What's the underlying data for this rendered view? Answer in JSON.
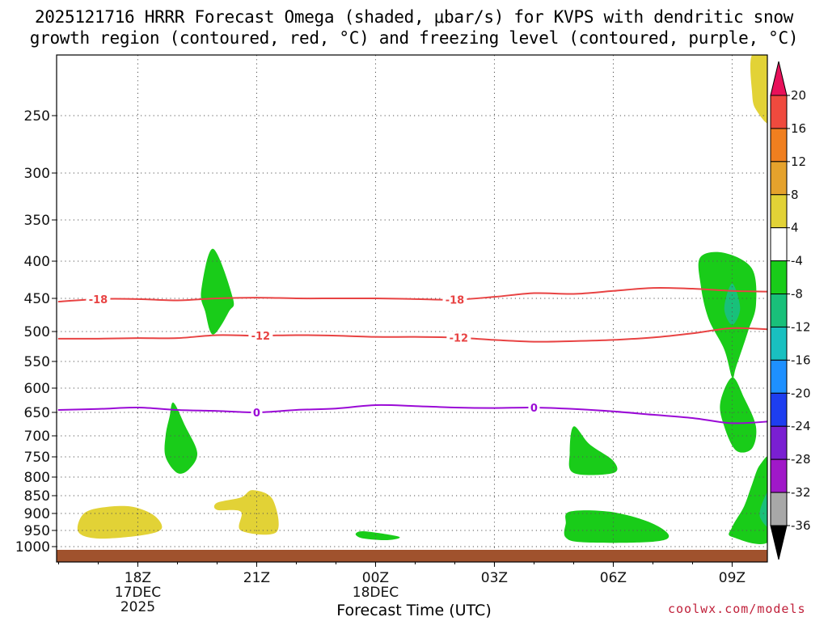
{
  "title": {
    "line1": "2025121716 HRRR Forecast Omega (shaded, μbar/s) for KVPS with dendritic snow",
    "line2": "growth region (contoured, red, °C) and freezing level (contoured, purple, °C)"
  },
  "xlabel": "Forecast Time (UTC)",
  "credit": "coolwx.com/models",
  "chart_data": {
    "type": "heatmap",
    "title": "2025121716 HRRR Forecast Omega (shaded, μbar/s) for KVPS with dendritic snow growth region (contoured, red, °C) and freezing level (contoured, purple, °C)",
    "xlabel": "Forecast Time (UTC)",
    "ylabel": "",
    "x_range_hours_after_16Z": [
      0,
      18
    ],
    "x_ticks": [
      {
        "hour": 2,
        "label": "18Z",
        "sub1": "17DEC",
        "sub2": "2025"
      },
      {
        "hour": 5,
        "label": "21Z",
        "sub1": "",
        "sub2": ""
      },
      {
        "hour": 8,
        "label": "00Z",
        "sub1": "18DEC",
        "sub2": ""
      },
      {
        "hour": 11,
        "label": "03Z",
        "sub1": "",
        "sub2": ""
      },
      {
        "hour": 14,
        "label": "06Z",
        "sub1": "",
        "sub2": ""
      },
      {
        "hour": 17,
        "label": "09Z",
        "sub1": "",
        "sub2": ""
      }
    ],
    "y_ticks_hPa": [
      250,
      300,
      350,
      400,
      450,
      500,
      550,
      600,
      650,
      700,
      750,
      800,
      850,
      900,
      950,
      1000
    ],
    "y_range_hPa": [
      200,
      1020
    ],
    "grid": true,
    "surface_hPa": 1010,
    "colorbar": {
      "ticks": [
        20,
        16,
        12,
        8,
        4,
        -4,
        -8,
        -12,
        -16,
        -20,
        -24,
        -28,
        -32,
        -36
      ],
      "colors": [
        "#e8115a",
        "#ef4a3e",
        "#f07f1f",
        "#e5a22c",
        "#e2d236",
        "#ffffff",
        "#19cc19",
        "#19c07a",
        "#19c0c0",
        "#1e90ff",
        "#1e3ef0",
        "#7a1fd2",
        "#a018c8",
        "#a8a8a8",
        "#000000"
      ]
    },
    "contours": [
      {
        "label": "-18",
        "color": "#e84343",
        "x": [
          0,
          1,
          2,
          3,
          4,
          5,
          6,
          7,
          8,
          9,
          10,
          11,
          12,
          13,
          14,
          15,
          16,
          17,
          18
        ],
        "p": [
          455,
          451,
          451,
          453,
          450,
          449,
          450,
          450,
          450,
          451,
          452,
          448,
          443,
          444,
          440,
          436,
          437,
          440,
          441
        ]
      },
      {
        "label": "-12",
        "color": "#e84343",
        "x": [
          0,
          1,
          2,
          3,
          4,
          5,
          6,
          7,
          8,
          9,
          10,
          11,
          12,
          13,
          14,
          15,
          16,
          17,
          18
        ],
        "p": [
          512,
          512,
          511,
          511,
          506,
          507,
          506,
          507,
          509,
          509,
          510,
          514,
          517,
          516,
          514,
          510,
          503,
          495,
          497
        ]
      },
      {
        "label": "0",
        "color": "#9a0ad6",
        "x": [
          0,
          1,
          2,
          3,
          4,
          5,
          6,
          7,
          8,
          9,
          10,
          11,
          12,
          13,
          14,
          15,
          16,
          17,
          18
        ],
        "p": [
          645,
          643,
          640,
          645,
          647,
          650,
          645,
          642,
          635,
          637,
          640,
          641,
          640,
          643,
          648,
          655,
          662,
          673,
          669
        ]
      }
    ],
    "shaded_regions": [
      {
        "value_class": "-4 to -8",
        "color": "#19cc19",
        "pts": [
          [
            3.9,
            385
          ],
          [
            4.4,
            450
          ],
          [
            4.3,
            470
          ],
          [
            3.9,
            505
          ],
          [
            3.7,
            470
          ],
          [
            3.6,
            440
          ]
        ]
      },
      {
        "value_class": "-4 to -8",
        "color": "#19cc19",
        "pts": [
          [
            2.9,
            630
          ],
          [
            3.2,
            680
          ],
          [
            3.5,
            740
          ],
          [
            3.3,
            780
          ],
          [
            3.0,
            790
          ],
          [
            2.7,
            750
          ],
          [
            2.7,
            700
          ],
          [
            2.8,
            660
          ]
        ]
      },
      {
        "value_class": "-4 to -8",
        "color": "#19cc19",
        "pts": [
          [
            16.2,
            395
          ],
          [
            16.8,
            390
          ],
          [
            17.5,
            410
          ],
          [
            17.6,
            460
          ],
          [
            17.4,
            500
          ],
          [
            17.1,
            560
          ],
          [
            17.0,
            580
          ],
          [
            16.8,
            530
          ],
          [
            16.4,
            480
          ],
          [
            16.2,
            430
          ]
        ]
      },
      {
        "value_class": "-8 to -12",
        "color": "#19c07a",
        "pts": [
          [
            17.0,
            430
          ],
          [
            17.2,
            465
          ],
          [
            17.0,
            490
          ],
          [
            16.8,
            465
          ]
        ]
      },
      {
        "value_class": "-4 to -8",
        "color": "#19cc19",
        "pts": [
          [
            17.0,
            580
          ],
          [
            17.3,
            620
          ],
          [
            17.6,
            680
          ],
          [
            17.5,
            730
          ],
          [
            17.1,
            735
          ],
          [
            16.8,
            680
          ],
          [
            16.7,
            630
          ]
        ]
      },
      {
        "value_class": "-4 to -8",
        "color": "#19cc19",
        "pts": [
          [
            13.0,
            680
          ],
          [
            13.4,
            720
          ],
          [
            14.0,
            760
          ],
          [
            14.0,
            790
          ],
          [
            13.0,
            790
          ],
          [
            12.9,
            740
          ]
        ]
      },
      {
        "value_class": "-4 to -8",
        "color": "#19cc19",
        "pts": [
          [
            12.9,
            895
          ],
          [
            13.9,
            895
          ],
          [
            14.9,
            925
          ],
          [
            15.4,
            965
          ],
          [
            15.0,
            985
          ],
          [
            13.3,
            987
          ],
          [
            12.8,
            972
          ],
          [
            12.8,
            930
          ]
        ]
      },
      {
        "value_class": "-4 to -8",
        "color": "#19cc19",
        "pts": [
          [
            7.6,
            953
          ],
          [
            7.9,
            955
          ],
          [
            8.6,
            970
          ],
          [
            8.3,
            980
          ],
          [
            7.7,
            975
          ],
          [
            7.5,
            963
          ]
        ]
      },
      {
        "value_class": "-4 to -8",
        "color": "#19cc19",
        "pts": [
          [
            17.7,
            770
          ],
          [
            18.0,
            760
          ],
          [
            18.0,
            975
          ],
          [
            17.0,
            970
          ],
          [
            17.0,
            940
          ],
          [
            17.3,
            880
          ],
          [
            17.5,
            820
          ]
        ]
      },
      {
        "value_class": "-8 to -12",
        "color": "#19c07a",
        "pts": [
          [
            18.0,
            830
          ],
          [
            18.0,
            940
          ],
          [
            17.7,
            910
          ],
          [
            17.8,
            860
          ]
        ]
      },
      {
        "value_class": "4 to 8",
        "color": "#e2d236",
        "pts": [
          [
            1.0,
            885
          ],
          [
            1.8,
            880
          ],
          [
            2.4,
            905
          ],
          [
            2.6,
            945
          ],
          [
            2.1,
            965
          ],
          [
            1.0,
            975
          ],
          [
            0.5,
            955
          ],
          [
            0.6,
            905
          ]
        ]
      },
      {
        "value_class": "4 to 8",
        "color": "#e2d236",
        "pts": [
          [
            4.9,
            835
          ],
          [
            5.4,
            860
          ],
          [
            5.5,
            955
          ],
          [
            4.6,
            950
          ],
          [
            4.6,
            895
          ],
          [
            4.0,
            890
          ],
          [
            4.0,
            870
          ],
          [
            4.6,
            855
          ]
        ]
      },
      {
        "value_class": "4 to 8",
        "color": "#e2d236",
        "pts": [
          [
            17.5,
            200
          ],
          [
            18.0,
            200
          ],
          [
            18.0,
            255
          ],
          [
            17.6,
            245
          ],
          [
            17.5,
            230
          ]
        ]
      }
    ]
  }
}
